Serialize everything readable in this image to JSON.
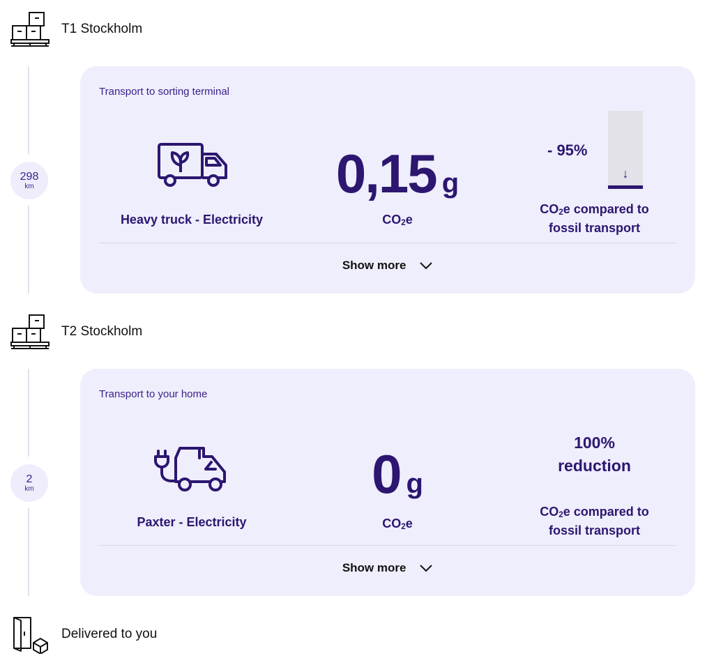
{
  "stops": [
    {
      "label": "T1 Stockholm",
      "icon": "warehouse-boxes-icon"
    },
    {
      "label": "T2 Stockholm",
      "icon": "warehouse-boxes-icon"
    },
    {
      "label": "Delivered to you",
      "icon": "door-package-icon"
    }
  ],
  "legs": [
    {
      "distance": "298",
      "distance_unit": "km",
      "title": "Transport to sorting terminal",
      "mode_label": "Heavy truck - Electricity",
      "mode_icon": "electric-truck-leaf-icon",
      "emission_value": "0,15",
      "emission_unit": "g",
      "emission_label_pre": "CO",
      "emission_label_sub": "2",
      "emission_label_post": "e",
      "reduction_text": "- 95%",
      "reduction_percent": 95,
      "comparison_line1_pre": "CO",
      "comparison_line1_sub": "2",
      "comparison_line1_post": "e compared to",
      "comparison_line2": "fossil transport",
      "show_more": "Show more"
    },
    {
      "distance": "2",
      "distance_unit": "km",
      "title": "Transport to your home",
      "mode_label": "Paxter - Electricity",
      "mode_icon": "electric-paxter-plug-icon",
      "emission_value": "0",
      "emission_unit": "g",
      "emission_label_pre": "CO",
      "emission_label_sub": "2",
      "emission_label_post": "e",
      "reduction_line1": "100%",
      "reduction_line2": "reduction",
      "comparison_line1_pre": "CO",
      "comparison_line1_sub": "2",
      "comparison_line1_post": "e compared to",
      "comparison_line2": "fossil transport",
      "show_more": "Show more"
    }
  ],
  "colors": {
    "accent": "#2c1670",
    "card_bg": "#efeefc",
    "badge_bg": "#efedfb",
    "line": "#e3e0ea",
    "bar_bg": "#e2e2e8"
  }
}
